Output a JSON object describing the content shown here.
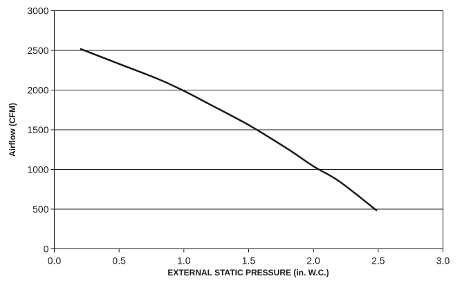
{
  "chart_data": {
    "type": "line",
    "title": "",
    "xlabel": "EXTERNAL STATIC PRESSURE (in. W.C.)",
    "ylabel": "Airflow (CFM)",
    "xlim": [
      0.0,
      3.0
    ],
    "ylim": [
      0,
      3000
    ],
    "xticks": [
      "0.0",
      "0.5",
      "1.0",
      "1.5",
      "2.0",
      "2.5",
      "3.0"
    ],
    "yticks": [
      "0",
      "500",
      "1000",
      "1500",
      "2000",
      "2500",
      "3000"
    ],
    "grid": "horizontal",
    "series": [
      {
        "x": [
          0.2,
          0.5,
          0.8,
          1.0,
          1.2,
          1.5,
          1.8,
          2.0,
          2.2,
          2.49
        ],
        "y": [
          2520,
          2330,
          2140,
          1990,
          1820,
          1560,
          1260,
          1040,
          850,
          480
        ]
      }
    ]
  }
}
